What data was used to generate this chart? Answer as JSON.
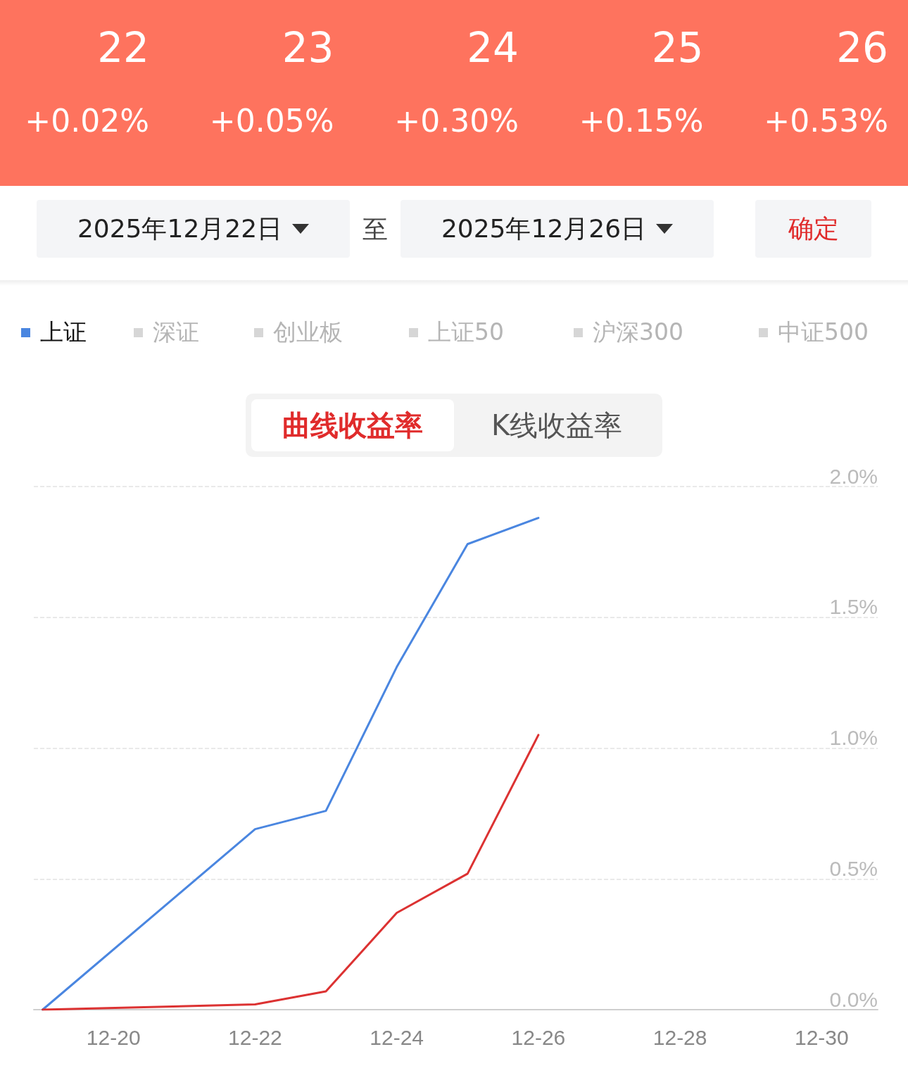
{
  "chart_data": {
    "type": "line",
    "x": [
      "--12-19",
      "--12-22",
      "--12-23",
      "--12-24",
      "--12-25",
      "--12-26"
    ],
    "series": [
      {
        "name": "上证",
        "color": "#4a86e0",
        "values": [
          0,
          0.69,
          0.76,
          1.31,
          1.78,
          1.88
        ]
      },
      {
        "color": "#dc3232",
        "values": [
          0,
          0.02,
          0.07,
          0.37,
          0.52,
          1.05
        ]
      }
    ],
    "xlim": [
      "--12-18T21:00",
      "--12-30T19:00"
    ],
    "xticks": [
      {
        "value": "--12-20",
        "label": "12-20"
      },
      {
        "value": "--12-22",
        "label": "12-22"
      },
      {
        "value": "--12-24",
        "label": "12-24"
      },
      {
        "value": "--12-26",
        "label": "12-26"
      },
      {
        "value": "--12-28",
        "label": "12-28"
      },
      {
        "value": "--12-30",
        "label": "12-30"
      }
    ],
    "ylim": [
      0,
      2
    ],
    "yticks": [
      {
        "value": 0,
        "label": "0.0%"
      },
      {
        "value": 0.5,
        "label": "0.5%"
      },
      {
        "value": 1,
        "label": "1.0%"
      },
      {
        "value": 1.5,
        "label": "1.5%"
      },
      {
        "value": 2,
        "label": "2.0%"
      }
    ],
    "grid": "y",
    "legend": "top left",
    "marker": "none",
    "line_style": "solid",
    "annotations": [
      "22",
      "+0.02%",
      "23",
      "+0.05%",
      "24",
      "+0.30%",
      "25",
      "+0.15%",
      "26",
      "+0.53%",
      "2025年12月22日",
      "至",
      "2025年12月26日",
      "确定",
      "深证",
      "创业板",
      "上证50",
      "沪深300",
      "中证500",
      "曲线收益率",
      "K线收益率"
    ]
  }
}
